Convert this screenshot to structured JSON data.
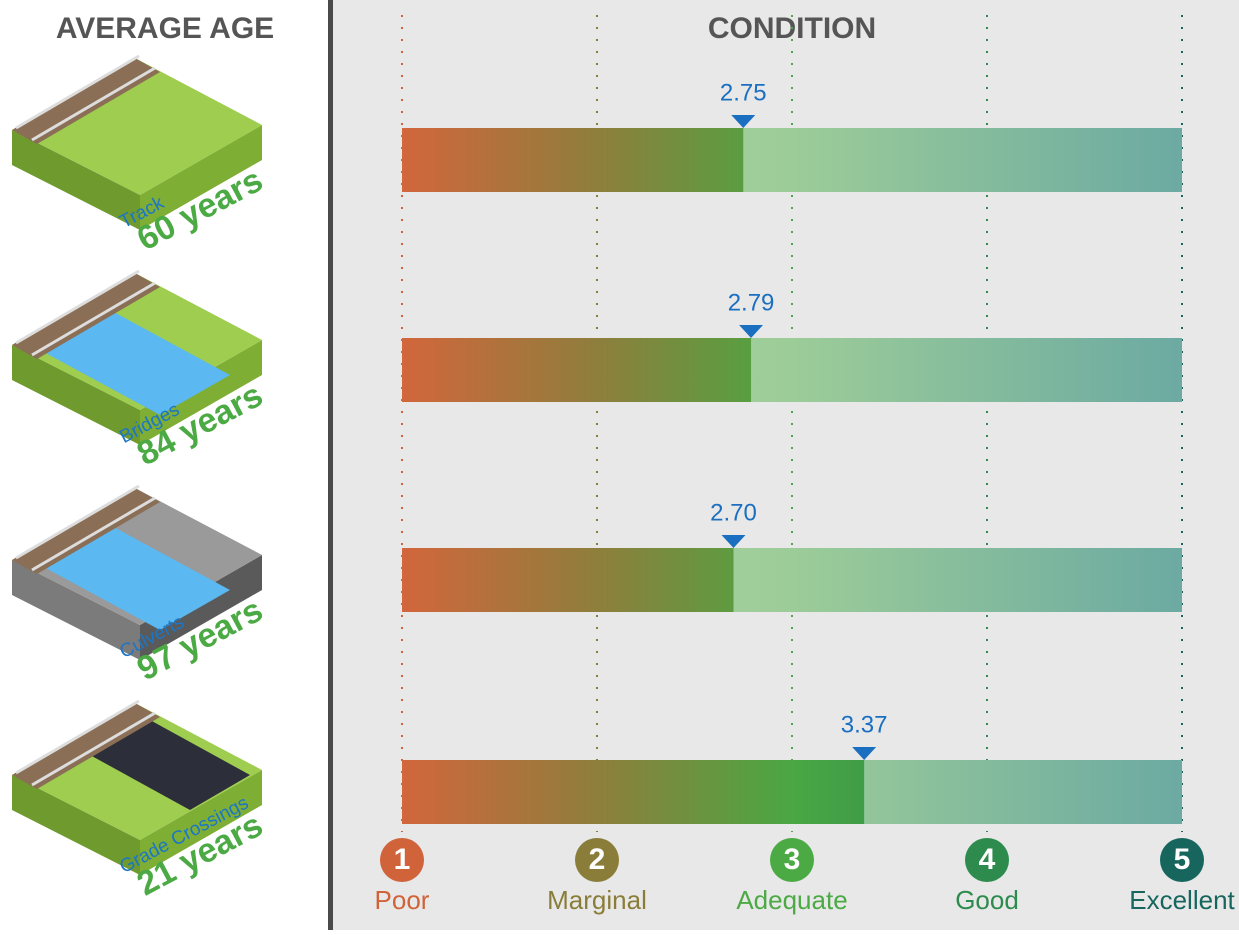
{
  "chart_data": {
    "type": "bar",
    "left_title": "AVERAGE AGE",
    "title": "CONDITION",
    "categories": [
      "Track",
      "Bridges",
      "Culverts",
      "Grade Crossings"
    ],
    "age_labels": [
      "60 years",
      "84 years",
      "97 years",
      "21 years"
    ],
    "values": [
      2.75,
      2.79,
      2.7,
      3.37
    ],
    "value_labels": [
      "2.75",
      "2.79",
      "2.70",
      "3.37"
    ],
    "xlim": [
      1,
      5
    ],
    "xticks": [
      1,
      2,
      3,
      4,
      5
    ],
    "tick_names": [
      "Poor",
      "Marginal",
      "Adequate",
      "Good",
      "Excellent"
    ],
    "tick_colors": [
      "#d0633a",
      "#8a7d3a",
      "#4caa45",
      "#2e8b4e",
      "#17665e"
    ],
    "marker_color": "#1a6fc0",
    "grid": true
  }
}
